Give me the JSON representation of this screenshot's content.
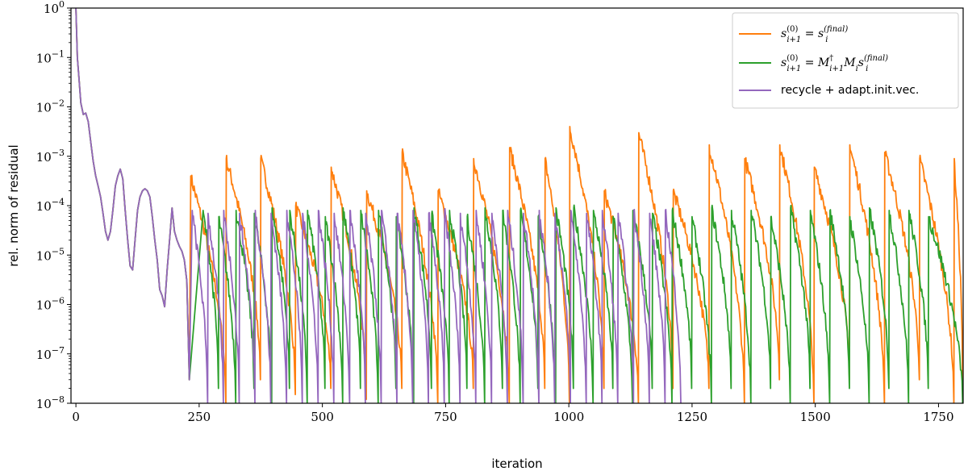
{
  "chart_data": {
    "type": "line",
    "xlabel": "iteration",
    "ylabel": "rel. norm of residual",
    "xlim": [
      -10,
      1800
    ],
    "ylim": [
      1e-08,
      1
    ],
    "yscale": "log",
    "grid": false,
    "legend_position": "top-right",
    "xticks": [
      0,
      250,
      500,
      750,
      1000,
      1250,
      1500,
      1750
    ],
    "xtick_labels": [
      "0",
      "250",
      "500",
      "750",
      "1000",
      "1250",
      "1500",
      "1750"
    ],
    "yticks": [
      1e-08,
      1e-07,
      1e-06,
      1e-05,
      0.0001,
      0.001,
      0.01,
      0.1,
      1
    ],
    "ytick_labels": [
      {
        "base": "10",
        "exp": "−8"
      },
      {
        "base": "10",
        "exp": "−7"
      },
      {
        "base": "10",
        "exp": "−6"
      },
      {
        "base": "10",
        "exp": "−5"
      },
      {
        "base": "10",
        "exp": "−4"
      },
      {
        "base": "10",
        "exp": "−3"
      },
      {
        "base": "10",
        "exp": "−2"
      },
      {
        "base": "10",
        "exp": "−1"
      },
      {
        "base": "10",
        "exp": "0"
      }
    ],
    "initial_phase": {
      "x": [
        0,
        3,
        6,
        10,
        15,
        20,
        25,
        30,
        35,
        40,
        45,
        50,
        55,
        60,
        65,
        70,
        75,
        80,
        85,
        90,
        95,
        100,
        105,
        110,
        115,
        120,
        125,
        130,
        135,
        140,
        145,
        150,
        155,
        160,
        165,
        170,
        175,
        180,
        185,
        190,
        195,
        200,
        205,
        210,
        215,
        220,
        225,
        230
      ],
      "y": [
        1.0,
        0.1,
        0.04,
        0.012,
        0.007,
        0.0075,
        0.005,
        0.002,
        0.0008,
        0.0004,
        0.00025,
        0.00015,
        7e-05,
        3e-05,
        2e-05,
        3e-05,
        8e-05,
        0.00025,
        0.0004,
        0.00055,
        0.00035,
        8e-05,
        2e-05,
        6e-06,
        5e-06,
        2e-05,
        8e-05,
        0.00015,
        0.0002,
        0.00022,
        0.0002,
        0.00015,
        6e-05,
        2e-05,
        8e-06,
        2e-06,
        1.5e-06,
        9e-07,
        5e-06,
        2e-05,
        9e-05,
        3e-05,
        2e-05,
        1.5e-05,
        1.2e-05,
        8e-06,
        3e-06,
        3e-08
      ]
    },
    "series": [
      {
        "name_parts": {
          "lhs": "s",
          "lhs_sup": "(0)",
          "lhs_sub": "i+1",
          "rhs": "s",
          "rhs_sup": "(final)",
          "rhs_sub": "i"
        },
        "color": "#ff7f0e",
        "spike_x": [
          233,
          305,
          375,
          446,
          518,
          590,
          662,
          735,
          807,
          880,
          952,
          1002,
          1072,
          1142,
          1212,
          1285,
          1357,
          1428,
          1498,
          1570,
          1641,
          1712,
          1782
        ],
        "spike_y": [
          0.0004,
          0.0009,
          0.0009,
          0.0001,
          0.0006,
          0.0002,
          0.0012,
          0.0002,
          0.0009,
          0.0015,
          0.0009,
          0.004,
          0.0002,
          0.003,
          0.0002,
          0.0017,
          0.0009,
          0.0017,
          0.0006,
          0.0017,
          0.0012,
          0.0009,
          0.0009
        ],
        "valley_y": [
          1e-08,
          3e-08,
          1.5e-08,
          2e-08,
          1.2e-08,
          2e-08,
          1e-08,
          2e-08,
          1e-08,
          2e-08,
          1e-08,
          2e-08,
          1e-08,
          2e-08,
          2e-08,
          1e-08,
          3e-08,
          1e-08,
          3e-08,
          1e-08,
          3e-08,
          1e-08,
          2e-08
        ]
      },
      {
        "name_parts": {
          "lhs": "s",
          "lhs_sup": "(0)",
          "lhs_sub": "i+1",
          "rhs": "M",
          "rhs_sup": "†",
          "rhs_sub": "i+1",
          "rhs2": "M",
          "rhs2_sub": "i",
          "rhs3": "s",
          "rhs3_sup": "(final)",
          "rhs3_sub": "i"
        },
        "color": "#2ca02c",
        "spike_x": [
          258,
          290,
          325,
          362,
          398,
          434,
          470,
          506,
          542,
          578,
          614,
          650,
          686,
          722,
          758,
          794,
          830,
          866,
          902,
          938,
          974,
          1010,
          1050,
          1090,
          1130,
          1170,
          1210,
          1250,
          1290,
          1330,
          1370,
          1410,
          1450,
          1490,
          1530,
          1570,
          1610,
          1650,
          1690,
          1730
        ],
        "spike_y": [
          8e-05,
          6e-05,
          8e-05,
          7e-05,
          9e-05,
          8e-05,
          8e-05,
          6e-05,
          9e-05,
          8e-05,
          8e-05,
          6e-05,
          9e-05,
          7e-05,
          8e-05,
          6e-05,
          9e-05,
          8e-05,
          8e-05,
          6e-05,
          9e-05,
          9e-05,
          8e-05,
          6e-05,
          8e-05,
          7e-05,
          8e-05,
          6e-05,
          9e-05,
          8e-05,
          8e-05,
          6e-05,
          9e-05,
          8e-05,
          8e-05,
          6e-05,
          9e-05,
          8e-05,
          8e-05,
          6e-05
        ],
        "valley_y": [
          2e-08,
          1e-08,
          2e-08,
          1e-08,
          2e-08,
          1e-08,
          2e-08,
          1e-08,
          2e-08,
          1e-08,
          2e-08,
          1e-08,
          2e-08,
          1e-08,
          2e-08,
          1e-08,
          2e-08,
          1e-08,
          2e-08,
          1e-08,
          2e-08,
          1e-08,
          2e-08,
          1e-08,
          2e-08,
          1e-08,
          2e-08,
          1e-08,
          2e-08,
          1e-08,
          2e-08,
          1e-08,
          2e-08,
          1e-08,
          2e-08,
          1e-08,
          2e-08,
          1e-08,
          2e-08,
          8e-09
        ]
      },
      {
        "name": "recycle + adapt.init.vec.",
        "color": "#9467bd",
        "spike_x": [
          236,
          268,
          300,
          332,
          364,
          396,
          428,
          460,
          492,
          524,
          556,
          588,
          620,
          652,
          684,
          716,
          748,
          780,
          812,
          844,
          876,
          908,
          940,
          972,
          1004,
          1036,
          1068,
          1100,
          1132,
          1164,
          1196
        ],
        "spike_y": [
          8e-05,
          7e-05,
          8e-05,
          7e-05,
          8e-05,
          7e-05,
          8e-05,
          7e-05,
          8e-05,
          7e-05,
          8e-05,
          7e-05,
          8e-05,
          7e-05,
          8e-05,
          7e-05,
          8e-05,
          7e-05,
          8e-05,
          7e-05,
          8e-05,
          7e-05,
          8e-05,
          7e-05,
          8e-05,
          7e-05,
          8e-05,
          7e-05,
          8e-05,
          7e-05,
          8e-05
        ],
        "valley_y": [
          1e-08,
          1e-08,
          1e-08,
          1e-08,
          1e-08,
          1e-08,
          1e-08,
          1e-08,
          1e-08,
          1e-08,
          1e-08,
          1e-08,
          1e-08,
          1e-08,
          1e-08,
          1e-08,
          1e-08,
          1e-08,
          1e-08,
          1e-08,
          1e-08,
          1e-08,
          1e-08,
          1e-08,
          1e-08,
          1e-08,
          1e-08,
          1e-08,
          1e-08,
          1e-08,
          1e-08
        ],
        "end_x": 1228
      }
    ]
  }
}
